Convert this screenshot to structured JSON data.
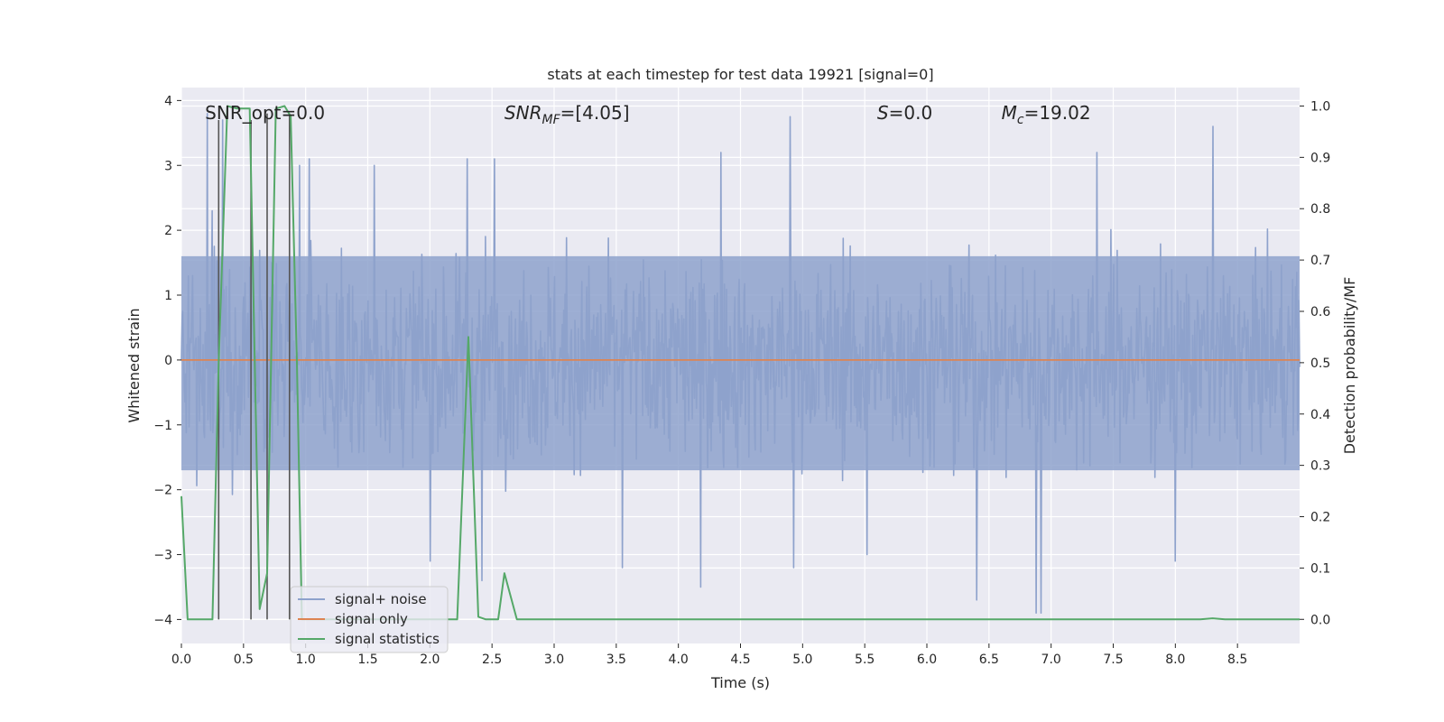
{
  "chart_data": {
    "type": "line",
    "title": "stats at each timestep for test data 19921 [signal=0]",
    "xlabel": "Time (s)",
    "ylabel": "Whitened strain",
    "ylabel_right": "Detection probability/MF",
    "xlim": [
      0.0,
      9.0
    ],
    "ylim": [
      -4.37,
      4.2
    ],
    "ylim_right": [
      -0.047,
      1.036
    ],
    "x_ticks": [
      0.0,
      0.5,
      1.0,
      1.5,
      2.0,
      2.5,
      3.0,
      3.5,
      4.0,
      4.5,
      5.0,
      5.5,
      6.0,
      6.5,
      7.0,
      7.5,
      8.0,
      8.5
    ],
    "x_tick_labels": [
      "0.0",
      "0.5",
      "1.0",
      "1.5",
      "2.0",
      "2.5",
      "3.0",
      "3.5",
      "4.0",
      "4.5",
      "5.0",
      "5.5",
      "6.0",
      "6.5",
      "7.0",
      "7.5",
      "8.0",
      "8.5"
    ],
    "y_ticks": [
      4,
      3,
      2,
      1,
      0,
      -1,
      -2,
      -3,
      -4
    ],
    "y_tick_labels": [
      "4",
      "3",
      "2",
      "1",
      "0",
      "−1",
      "−2",
      "−3",
      "−4"
    ],
    "y_right_ticks": [
      1.0,
      0.9,
      0.8,
      0.7,
      0.6,
      0.5,
      0.4,
      0.3,
      0.2,
      0.1,
      0.0
    ],
    "y_right_tick_labels": [
      "1.0",
      "0.9",
      "0.8",
      "0.7",
      "0.6",
      "0.5",
      "0.4",
      "0.3",
      "0.2",
      "0.1",
      "0.0"
    ],
    "grid": true,
    "legend_position": "lower-left",
    "annotations": [
      {
        "text": "SNR_opt=0.0",
        "x": 0.19,
        "y": 3.8
      },
      {
        "text": "SNR",
        "sub": "MF",
        "suffix": "=[4.05]",
        "italic": true,
        "x": 2.6,
        "y": 3.8
      },
      {
        "text": "S",
        "suffix": "=0.0",
        "italic": true,
        "x": 5.6,
        "y": 3.8
      },
      {
        "text": "M",
        "sub": "c",
        "suffix": "=19.02",
        "italic": true,
        "x": 6.6,
        "y": 3.8
      }
    ],
    "series": [
      {
        "name": "signal+ noise",
        "color": "#8ea2cc",
        "kind": "noise",
        "x_range": [
          0.0,
          9.0
        ],
        "envelope_typical": [
          -1.7,
          1.6
        ],
        "spikes": [
          {
            "x": 0.21,
            "y": 3.8
          },
          {
            "x": 0.25,
            "y": 2.3
          },
          {
            "x": 0.33,
            "y": 3.7
          },
          {
            "x": 0.95,
            "y": 3.0
          },
          {
            "x": 1.03,
            "y": 3.1
          },
          {
            "x": 1.55,
            "y": 3.0
          },
          {
            "x": 2.0,
            "y": -3.1
          },
          {
            "x": 2.3,
            "y": 3.1
          },
          {
            "x": 2.42,
            "y": -3.4
          },
          {
            "x": 2.52,
            "y": 3.1
          },
          {
            "x": 3.55,
            "y": -3.2
          },
          {
            "x": 4.18,
            "y": -3.5
          },
          {
            "x": 4.34,
            "y": 3.2
          },
          {
            "x": 4.9,
            "y": 3.75
          },
          {
            "x": 4.93,
            "y": -3.2
          },
          {
            "x": 5.52,
            "y": -3.0
          },
          {
            "x": 6.4,
            "y": -3.7
          },
          {
            "x": 6.88,
            "y": -3.9
          },
          {
            "x": 6.92,
            "y": -3.9
          },
          {
            "x": 7.37,
            "y": 3.2
          },
          {
            "x": 8.0,
            "y": -3.1
          },
          {
            "x": 8.3,
            "y": 3.6
          }
        ]
      },
      {
        "name": "signal only",
        "color": "#dd8452",
        "x": [
          0.0,
          9.0
        ],
        "y": [
          0.0,
          0.0
        ]
      },
      {
        "name": "signal statistics",
        "color": "#55a868",
        "axis": "right",
        "x": [
          0.0,
          0.05,
          0.25,
          0.3,
          0.37,
          0.45,
          0.55,
          0.63,
          0.69,
          0.76,
          0.83,
          0.88,
          0.93,
          0.97,
          1.0,
          2.22,
          2.31,
          2.39,
          2.45,
          2.55,
          2.6,
          2.7,
          2.8,
          8.2,
          8.3,
          8.4,
          9.0
        ],
        "y": [
          0.24,
          0.0,
          0.0,
          0.5,
          1.0,
          0.995,
          0.995,
          0.02,
          0.09,
          0.995,
          1.0,
          0.98,
          0.5,
          0.0,
          0.0,
          0.0,
          0.55,
          0.005,
          0.0,
          0.0,
          0.09,
          0.0,
          0.0,
          0.0,
          0.002,
          0.0,
          0.0
        ]
      }
    ],
    "vertical_markers": [
      {
        "x": 0.3,
        "y": [
          -4.0,
          3.7
        ]
      },
      {
        "x": 0.56,
        "y": [
          -4.0,
          3.7
        ]
      },
      {
        "x": 0.69,
        "y": [
          -4.0,
          3.8
        ]
      },
      {
        "x": 0.87,
        "y": [
          -4.0,
          3.8
        ]
      }
    ]
  }
}
